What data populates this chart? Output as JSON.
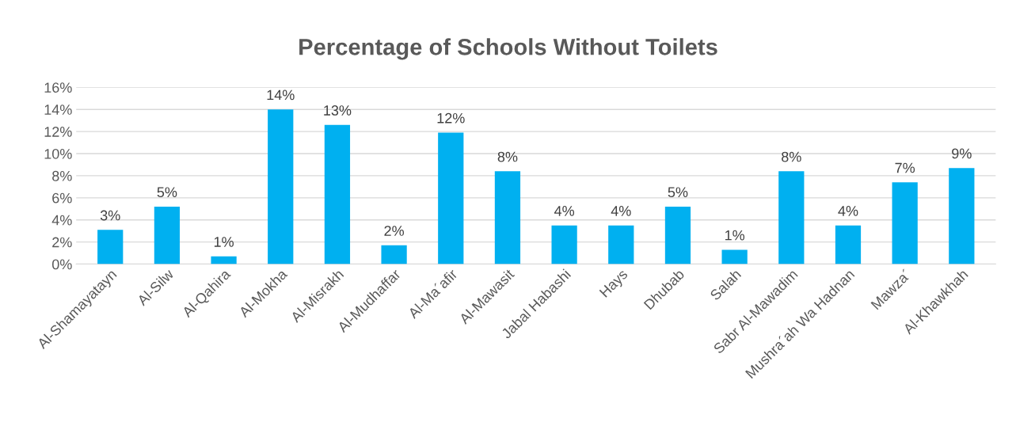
{
  "chart_data": {
    "type": "bar",
    "title": "Percentage of Schools Without Toilets",
    "categories": [
      "Al-Shamayatayn",
      "Al-Silw",
      "Al-Qahira",
      "Al-Mokha",
      "Al-Misrakh",
      "Al-Mudhaffar",
      "Al-Ma´afir",
      "Al-Mawasit",
      "Jabal Habashi",
      "Hays",
      "Dhubab",
      "Salah",
      "Sabr Al-Mawadim",
      "Mushra´ah Wa Hadnan",
      "Mawza´",
      "Al-Khawkhah"
    ],
    "values": [
      3.1,
      5.2,
      0.7,
      14.0,
      12.6,
      1.7,
      11.9,
      8.4,
      3.5,
      3.5,
      5.2,
      1.3,
      8.4,
      3.5,
      7.4,
      8.7
    ],
    "value_labels": [
      "3%",
      "5%",
      "1%",
      "14%",
      "13%",
      "2%",
      "12%",
      "8%",
      "4%",
      "4%",
      "5%",
      "1%",
      "8%",
      "4%",
      "7%",
      "9%"
    ],
    "color": "#00b0f0",
    "ylim": [
      0,
      16
    ],
    "yticks": [
      {
        "value": 0,
        "label": "0%"
      },
      {
        "value": 2,
        "label": "2%"
      },
      {
        "value": 4,
        "label": "4%"
      },
      {
        "value": 6,
        "label": "6%"
      },
      {
        "value": 8,
        "label": "8%"
      },
      {
        "value": 10,
        "label": "10%"
      },
      {
        "value": 12,
        "label": "12%"
      },
      {
        "value": 14,
        "label": "14%"
      },
      {
        "value": 16,
        "label": "16%"
      }
    ],
    "grid": "y",
    "legend": false
  }
}
